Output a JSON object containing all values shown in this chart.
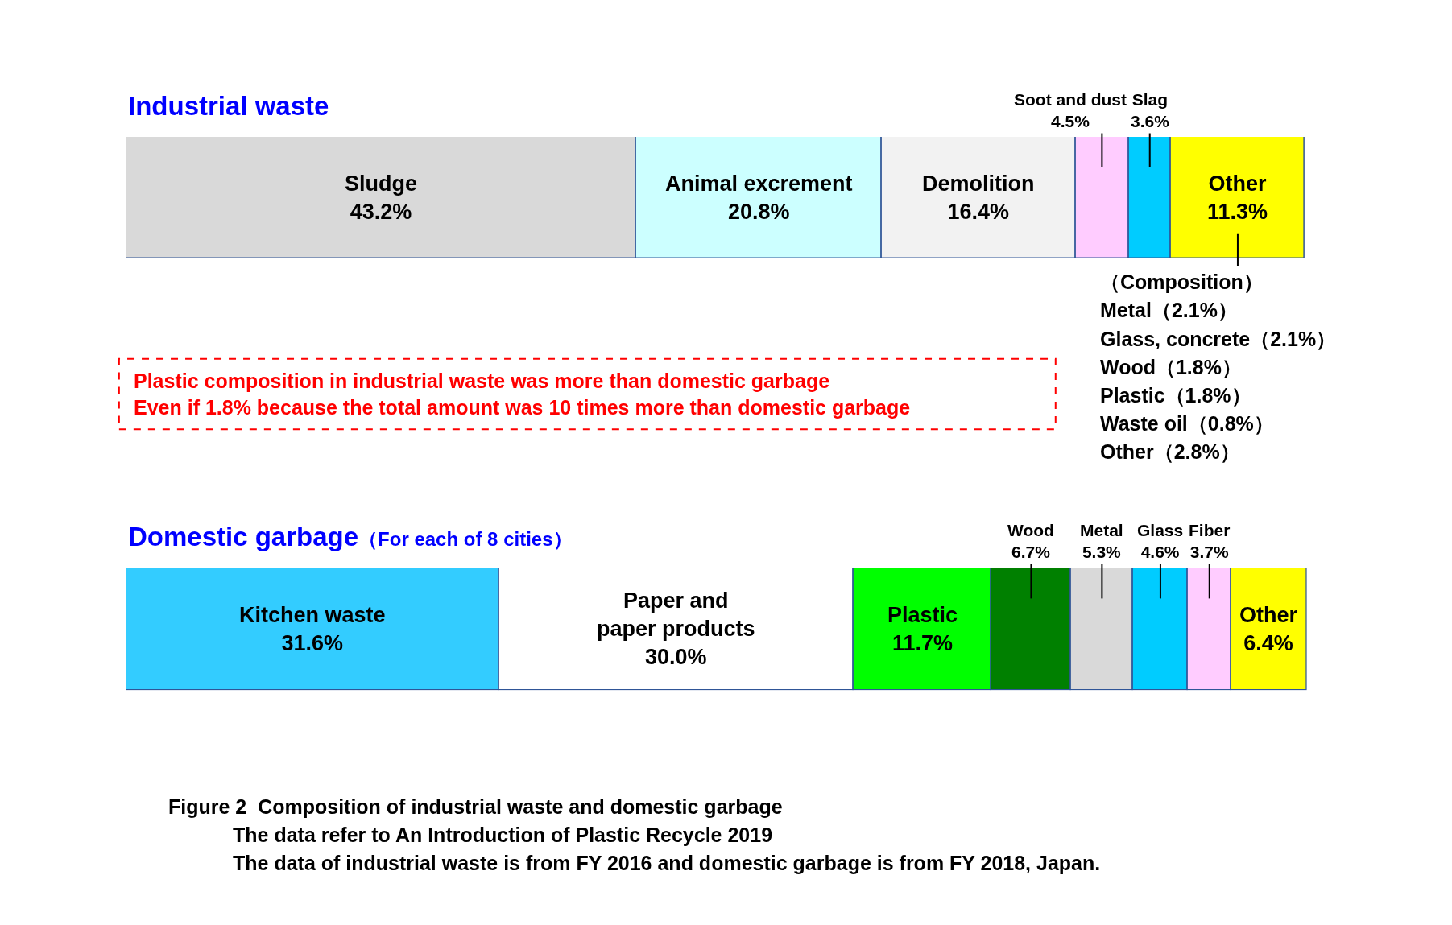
{
  "chart_data": [
    {
      "type": "bar",
      "orientation": "horizontal",
      "stacked": true,
      "title": "Industrial waste",
      "categories": [
        null
      ],
      "xlim": [
        0,
        100
      ],
      "tick_labels": false,
      "series": [
        {
          "name": "Sludge",
          "color": "#d9d9d9",
          "values": [
            43.2
          ],
          "value_labels": [
            "43.2%"
          ]
        },
        {
          "name": "Animal excrement",
          "color": "#ccffff",
          "values": [
            20.8
          ],
          "value_labels": [
            "20.8%"
          ]
        },
        {
          "name": "Demolition",
          "color": "#f2f2f2",
          "values": [
            16.4
          ],
          "value_labels": [
            "16.4%"
          ]
        },
        {
          "name": "Soot and dust",
          "color": "#ffccff",
          "values": [
            4.5
          ],
          "value_labels": [
            "4.5%"
          ]
        },
        {
          "name": "Slag",
          "color": "#00ccff",
          "values": [
            3.6
          ],
          "value_labels": [
            "3.6%"
          ]
        },
        {
          "name": "Other",
          "color": "#ffff00",
          "values": [
            11.3
          ],
          "value_labels": [
            "11.3%"
          ]
        }
      ],
      "annotations": [
        "（Composition）",
        "Metal（2.1%）",
        "Glass, concrete（2.1%）",
        "Wood（1.8%）",
        "Plastic（1.8%）",
        "Waste oil（0.8%）",
        "Other（2.8%）",
        "Plastic composition in industrial waste was more than domestic garbage\nEven if 1.8% because the total amount was 10 times more than domestic garbage"
      ]
    },
    {
      "type": "bar",
      "orientation": "horizontal",
      "stacked": true,
      "title": "Domestic garbage",
      "subtitle": "（For each of 8 cities）",
      "categories": [
        null
      ],
      "xlim": [
        0,
        100
      ],
      "tick_labels": false,
      "series": [
        {
          "name": "Kitchen waste",
          "color": "#33ccff",
          "values": [
            31.6
          ],
          "value_labels": [
            "31.6%"
          ]
        },
        {
          "name": "Paper and\npaper products",
          "color": "#ffffff",
          "values": [
            30.0
          ],
          "value_labels": [
            "30.0%"
          ]
        },
        {
          "name": "Plastic",
          "color": "#00ff00",
          "values": [
            11.7
          ],
          "value_labels": [
            "11.7%"
          ]
        },
        {
          "name": "Wood",
          "color": "#008000",
          "values": [
            6.7
          ],
          "value_labels": [
            "6.7%"
          ]
        },
        {
          "name": "Metal",
          "color": "#d9d9d9",
          "values": [
            5.3
          ],
          "value_labels": [
            "5.3%"
          ]
        },
        {
          "name": "Glass",
          "color": "#00ccff",
          "values": [
            4.6
          ],
          "value_labels": [
            "4.6%"
          ]
        },
        {
          "name": "Fiber",
          "color": "#ffccff",
          "values": [
            3.7
          ],
          "value_labels": [
            "3.7%"
          ]
        },
        {
          "name": "Other",
          "color": "#ffff00",
          "values": [
            6.4
          ],
          "value_labels": [
            "6.4%"
          ]
        }
      ],
      "annotations": [
        "Figure 2  Composition of industrial waste and domestic garbage",
        "The data refer to An Introduction of Plastic Recycle 2019",
        "The data of industrial waste is from FY 2016 and domestic garbage is from FY 2018, Japan."
      ]
    }
  ]
}
